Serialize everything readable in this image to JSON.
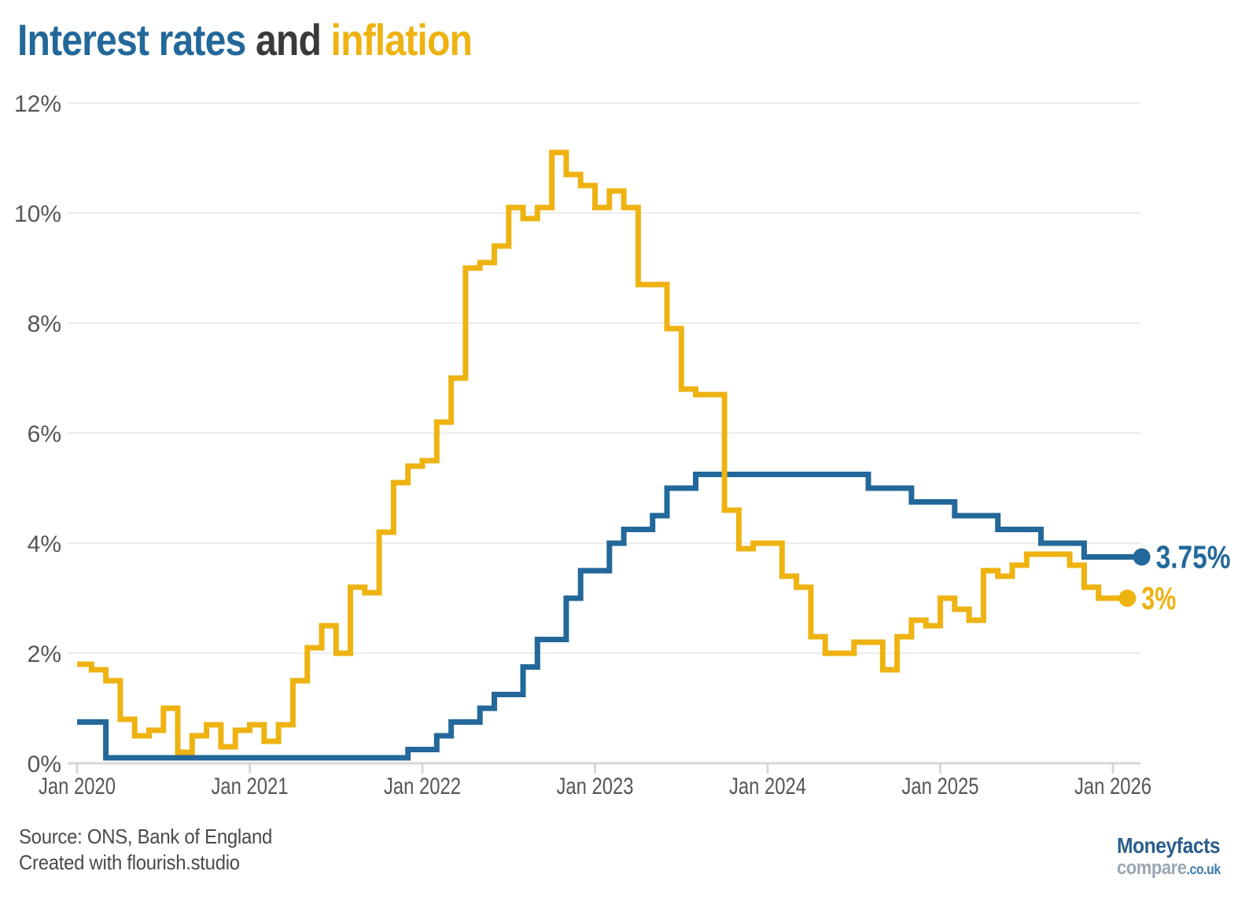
{
  "title": {
    "part1": "Interest rates",
    "part2": " and ",
    "part3": "inflation"
  },
  "colors": {
    "interest": "#23689a",
    "inflation": "#eeb211",
    "title_and": "#3a3a3a",
    "grid": "#ececec",
    "axis": "#d7d7d7",
    "tick_label": "#565656",
    "logo_blue": "#2a5d8c",
    "logo_gray": "#9aa7b2",
    "logo_couk_blue": "#3d7cab"
  },
  "chart_data": {
    "type": "line",
    "step": true,
    "title": "Interest rates and inflation",
    "x_start": "Jan 2020",
    "x_interval": "monthly",
    "x_tick_labels": [
      "Jan 2020",
      "Jan 2021",
      "Jan 2022",
      "Jan 2023",
      "Jan 2024",
      "Jan 2025",
      "Jan 2026"
    ],
    "y_ticks": [
      0,
      2,
      4,
      6,
      8,
      10,
      12
    ],
    "y_tick_labels": [
      "0%",
      "2%",
      "4%",
      "6%",
      "8%",
      "10%",
      "12%"
    ],
    "ylim": [
      0,
      12
    ],
    "grid": true,
    "legend_position": "none",
    "series": [
      {
        "name": "Interest rates",
        "color": "#23689a",
        "end_label": "3.75%",
        "end_value": 3.75,
        "extend_months": 1,
        "values": [
          0.75,
          0.75,
          0.1,
          0.1,
          0.1,
          0.1,
          0.1,
          0.1,
          0.1,
          0.1,
          0.1,
          0.1,
          0.1,
          0.1,
          0.1,
          0.1,
          0.1,
          0.1,
          0.1,
          0.1,
          0.1,
          0.1,
          0.1,
          0.25,
          0.25,
          0.5,
          0.75,
          0.75,
          1.0,
          1.25,
          1.25,
          1.75,
          2.25,
          2.25,
          3.0,
          3.5,
          3.5,
          4.0,
          4.25,
          4.25,
          4.5,
          5.0,
          5.0,
          5.25,
          5.25,
          5.25,
          5.25,
          5.25,
          5.25,
          5.25,
          5.25,
          5.25,
          5.25,
          5.25,
          5.25,
          5.0,
          5.0,
          5.0,
          4.75,
          4.75,
          4.75,
          4.5,
          4.5,
          4.5,
          4.25,
          4.25,
          4.25,
          4.0,
          4.0,
          4.0,
          3.75,
          3.75,
          3.75,
          3.75
        ]
      },
      {
        "name": "Inflation",
        "color": "#eeb211",
        "end_label": "3%",
        "end_value": 3,
        "extend_months": 2,
        "values": [
          1.8,
          1.7,
          1.5,
          0.8,
          0.5,
          0.6,
          1.0,
          0.2,
          0.5,
          0.7,
          0.3,
          0.6,
          0.7,
          0.4,
          0.7,
          1.5,
          2.1,
          2.5,
          2.0,
          3.2,
          3.1,
          4.2,
          5.1,
          5.4,
          5.5,
          6.2,
          7.0,
          9.0,
          9.1,
          9.4,
          10.1,
          9.9,
          10.1,
          11.1,
          10.7,
          10.5,
          10.1,
          10.4,
          10.1,
          8.7,
          8.7,
          7.9,
          6.8,
          6.7,
          6.7,
          4.6,
          3.9,
          4.0,
          4.0,
          3.4,
          3.2,
          2.3,
          2.0,
          2.0,
          2.2,
          2.2,
          1.7,
          2.3,
          2.6,
          2.5,
          3.0,
          2.8,
          2.6,
          3.5,
          3.4,
          3.6,
          3.8,
          3.8,
          3.8,
          3.6,
          3.2,
          3.0
        ]
      }
    ]
  },
  "footer": {
    "source": "Source: ONS, Bank of England",
    "created": "Created with flourish.studio"
  },
  "logo": {
    "line1": "Moneyfacts",
    "line2a": "compare",
    "line2b": ".co.uk"
  }
}
